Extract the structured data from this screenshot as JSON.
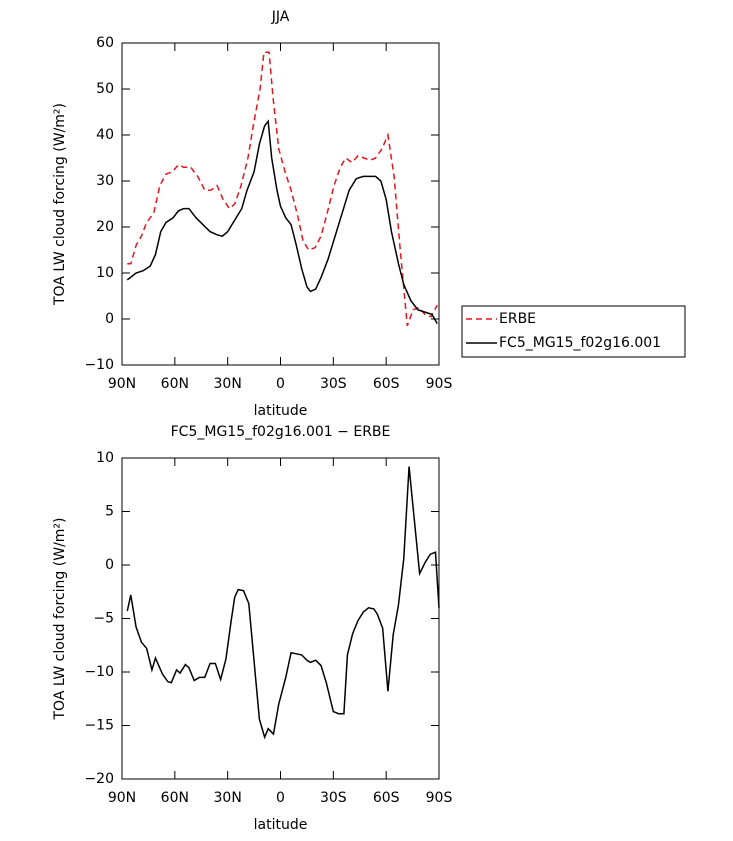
{
  "chart_data": [
    {
      "type": "line",
      "title": "JJA",
      "x_label": "latitude",
      "y_label": "TOA LW cloud forcing (W/m²)",
      "xlim": [
        90,
        -90
      ],
      "ylim": [
        -10,
        60
      ],
      "xticks": [
        {
          "value": 90,
          "label": "90N"
        },
        {
          "value": 60,
          "label": "60N"
        },
        {
          "value": 30,
          "label": "30N"
        },
        0,
        {
          "value": -30,
          "label": "30S"
        },
        {
          "value": -60,
          "label": "60S"
        },
        {
          "value": -90,
          "label": "90S"
        }
      ],
      "yticks": [
        {
          "value": -10,
          "label": "−10"
        },
        0,
        10,
        20,
        30,
        40,
        50,
        60
      ],
      "legend": "outside-right",
      "series": [
        {
          "name": "ERBE",
          "color": "#e8141c",
          "linestyle": "dashed",
          "x": [
            87,
            85,
            82,
            79,
            76,
            72,
            68.5,
            65,
            61.5,
            58,
            55,
            51,
            47,
            43,
            39.5,
            36,
            32.6,
            29,
            26,
            22.4,
            18.5,
            15,
            11.6,
            9.4,
            6.5,
            4.2,
            1,
            -2.6,
            -6,
            -9.4,
            -12.8,
            -16,
            -19.6,
            -23,
            -26.5,
            -30.4,
            -34,
            -37,
            -40.6,
            -44,
            -47.4,
            -50.8,
            -54,
            -57.6,
            -61,
            -64.5,
            -68,
            -72,
            -75.3,
            -78.7,
            -82,
            -85.5,
            -89
          ],
          "values": [
            12,
            12,
            16,
            18,
            21,
            23,
            29,
            31.5,
            32,
            33.5,
            33,
            33,
            31,
            28,
            28,
            29,
            26,
            24,
            25,
            29,
            35,
            43,
            50,
            58,
            58,
            48,
            37,
            32,
            28,
            23,
            17,
            15,
            15.5,
            18,
            23,
            29,
            33,
            35,
            34,
            35.5,
            35,
            34.5,
            35,
            37,
            40,
            31,
            15,
            -1.5,
            2,
            2.5,
            1,
            0.5,
            3
          ]
        },
        {
          "name": "FC5_MG15_f02g16.001",
          "color": "#000000",
          "linestyle": "solid",
          "x": [
            87,
            82,
            78,
            74,
            71,
            68,
            65,
            61,
            58,
            55,
            52,
            48,
            44,
            40,
            36,
            33,
            30,
            26,
            22,
            19,
            15,
            12,
            9,
            7,
            5,
            2,
            0,
            -3,
            -6,
            -9,
            -12,
            -15,
            -17,
            -20,
            -23,
            -27,
            -31,
            -35,
            -39,
            -43,
            -47,
            -51,
            -54,
            -57,
            -60,
            -63,
            -67,
            -70,
            -74,
            -78,
            -82,
            -86,
            -89
          ],
          "values": [
            8.5,
            10,
            10.5,
            11.5,
            14,
            19,
            21,
            22,
            23.5,
            24,
            24,
            22,
            20.5,
            19,
            18.3,
            18,
            19,
            21.5,
            24,
            28,
            32,
            38,
            42,
            43,
            35,
            28,
            24.5,
            22,
            20.5,
            16,
            11,
            7,
            6,
            6.5,
            9,
            13,
            18,
            23,
            28,
            30.5,
            31,
            31,
            31,
            30,
            26,
            19,
            12,
            7.5,
            4,
            2,
            1.5,
            1,
            -1
          ]
        }
      ]
    },
    {
      "type": "line",
      "title": "FC5_MG15_f02g16.001 − ERBE",
      "x_label": "latitude",
      "y_label": "TOA LW cloud forcing (W/m²)",
      "xlim": [
        90,
        -90
      ],
      "ylim": [
        -20,
        10
      ],
      "xticks": [
        {
          "value": 90,
          "label": "90N"
        },
        {
          "value": 60,
          "label": "60N"
        },
        {
          "value": 30,
          "label": "30N"
        },
        0,
        {
          "value": -30,
          "label": "30S"
        },
        {
          "value": -60,
          "label": "60S"
        },
        {
          "value": -90,
          "label": "90S"
        }
      ],
      "yticks": [
        {
          "value": -20,
          "label": "−20"
        },
        {
          "value": -15,
          "label": "−15"
        },
        {
          "value": -10,
          "label": "−10"
        },
        {
          "value": -5,
          "label": "−5"
        },
        0,
        5,
        10
      ],
      "series": [
        {
          "color": "#000000",
          "linestyle": "solid",
          "x": [
            87,
            85,
            82,
            79,
            76,
            73,
            71,
            67,
            64,
            62,
            59,
            57,
            54,
            52,
            49,
            46,
            43,
            40,
            37,
            34,
            31,
            28,
            26,
            24,
            21,
            18,
            15,
            12,
            9,
            7,
            4,
            1,
            -3,
            -6,
            -9,
            -12,
            -15,
            -17,
            -20,
            -23,
            -26,
            -30,
            -33,
            -36,
            -38,
            -41,
            -44,
            -47,
            -50,
            -53,
            -55,
            -58,
            -61,
            -64,
            -67,
            -70,
            -73,
            -76,
            -79,
            -82,
            -85,
            -88,
            -90
          ],
          "values": [
            -4.3,
            -2.8,
            -5.8,
            -7.2,
            -7.8,
            -9.8,
            -8.7,
            -10.2,
            -10.9,
            -11,
            -9.8,
            -10.1,
            -9.3,
            -9.6,
            -10.8,
            -10.5,
            -10.5,
            -9.2,
            -9.2,
            -10.7,
            -8.8,
            -5.2,
            -3,
            -2.3,
            -2.4,
            -3.6,
            -9,
            -14.4,
            -16.1,
            -15.3,
            -15.8,
            -13,
            -10.5,
            -8.2,
            -8.3,
            -8.4,
            -8.9,
            -9.1,
            -8.9,
            -9.4,
            -11,
            -13.7,
            -13.9,
            -13.9,
            -8.4,
            -6.4,
            -5.2,
            -4.4,
            -4,
            -4.1,
            -4.6,
            -5.9,
            -11.8,
            -6.5,
            -3.7,
            0.6,
            9.2,
            4.2,
            -0.8,
            0.2,
            1,
            1.2,
            -4
          ]
        }
      ]
    }
  ]
}
